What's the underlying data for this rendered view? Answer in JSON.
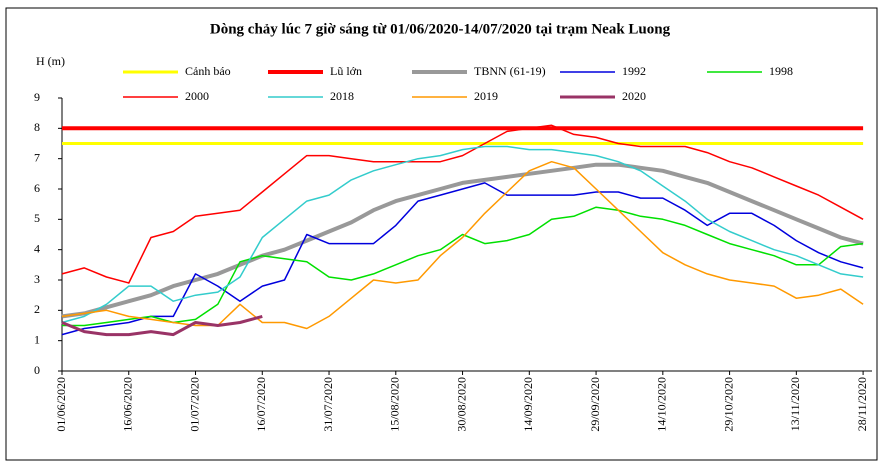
{
  "chart_data": {
    "type": "line",
    "title": "Dòng chảy lúc 7 giờ sáng từ 01/06/2020-14/07/2020 tại trạm Neak Luong",
    "y_label": "H (m)",
    "x": [
      "01/06/2020",
      "06/06/2020",
      "11/06/2020",
      "16/06/2020",
      "21/06/2020",
      "26/06/2020",
      "01/07/2020",
      "06/07/2020",
      "11/07/2020",
      "16/07/2020",
      "21/07/2020",
      "26/07/2020",
      "31/07/2020",
      "05/08/2020",
      "10/08/2020",
      "15/08/2020",
      "20/08/2020",
      "25/08/2020",
      "30/08/2020",
      "04/09/2020",
      "09/09/2020",
      "14/09/2020",
      "19/09/2020",
      "24/09/2020",
      "29/09/2020",
      "04/10/2020",
      "09/10/2020",
      "14/10/2020",
      "19/10/2020",
      "24/10/2020",
      "29/10/2020",
      "03/11/2020",
      "08/11/2020",
      "13/11/2020",
      "18/11/2020",
      "23/11/2020",
      "28/11/2020"
    ],
    "xlim": [
      "01/06/2020",
      "30/11/2020"
    ],
    "xticks": [
      "01/06/2020",
      "16/06/2020",
      "01/07/2020",
      "16/07/2020",
      "31/07/2020",
      "15/08/2020",
      "30/08/2020",
      "14/09/2020",
      "29/09/2020",
      "14/10/2020",
      "29/10/2020",
      "13/11/2020",
      "28/11/2020"
    ],
    "ylim": [
      0,
      9
    ],
    "yticks": [
      0,
      1,
      2,
      3,
      4,
      5,
      6,
      7,
      8,
      9
    ],
    "series": [
      {
        "name": "Cảnh báo",
        "color": "#ffff00",
        "width": 3,
        "values": [
          7.5,
          7.5,
          7.5,
          7.5,
          7.5,
          7.5,
          7.5,
          7.5,
          7.5,
          7.5,
          7.5,
          7.5,
          7.5,
          7.5,
          7.5,
          7.5,
          7.5,
          7.5,
          7.5,
          7.5,
          7.5,
          7.5,
          7.5,
          7.5,
          7.5,
          7.5,
          7.5,
          7.5,
          7.5,
          7.5,
          7.5,
          7.5,
          7.5,
          7.5,
          7.5,
          7.5,
          7.5
        ]
      },
      {
        "name": "Lũ lớn",
        "color": "#ff0000",
        "width": 4,
        "values": [
          8,
          8,
          8,
          8,
          8,
          8,
          8,
          8,
          8,
          8,
          8,
          8,
          8,
          8,
          8,
          8,
          8,
          8,
          8,
          8,
          8,
          8,
          8,
          8,
          8,
          8,
          8,
          8,
          8,
          8,
          8,
          8,
          8,
          8,
          8,
          8,
          8
        ]
      },
      {
        "name": "TBNN (61-19)",
        "color": "#999999",
        "width": 4,
        "values": [
          1.8,
          1.9,
          2.1,
          2.3,
          2.5,
          2.8,
          3.0,
          3.2,
          3.5,
          3.8,
          4.0,
          4.3,
          4.6,
          4.9,
          5.3,
          5.6,
          5.8,
          6.0,
          6.2,
          6.3,
          6.4,
          6.5,
          6.6,
          6.7,
          6.8,
          6.8,
          6.7,
          6.6,
          6.4,
          6.2,
          5.9,
          5.6,
          5.3,
          5.0,
          4.7,
          4.4,
          4.2
        ]
      },
      {
        "name": "1992",
        "color": "#0000dd",
        "width": 1.5,
        "values": [
          1.2,
          1.4,
          1.5,
          1.6,
          1.8,
          1.8,
          3.2,
          2.8,
          2.3,
          2.8,
          3.0,
          4.5,
          4.2,
          4.2,
          4.2,
          4.8,
          5.6,
          5.8,
          6.0,
          6.2,
          5.8,
          5.8,
          5.8,
          5.8,
          5.9,
          5.9,
          5.7,
          5.7,
          5.3,
          4.8,
          5.2,
          5.2,
          4.8,
          4.3,
          3.9,
          3.6,
          3.4
        ]
      },
      {
        "name": "1998",
        "color": "#00e000",
        "width": 1.5,
        "values": [
          1.5,
          1.5,
          1.6,
          1.7,
          1.8,
          1.6,
          1.7,
          2.2,
          3.6,
          3.8,
          3.7,
          3.6,
          3.1,
          3.0,
          3.2,
          3.5,
          3.8,
          4.0,
          4.5,
          4.2,
          4.3,
          4.5,
          5.0,
          5.1,
          5.4,
          5.3,
          5.1,
          5.0,
          4.8,
          4.5,
          4.2,
          4.0,
          3.8,
          3.5,
          3.5,
          4.1,
          4.2
        ]
      },
      {
        "name": "2000",
        "color": "#ff0000",
        "width": 1.5,
        "values": [
          3.2,
          3.4,
          3.1,
          2.9,
          4.4,
          4.6,
          5.1,
          5.2,
          5.3,
          5.9,
          6.5,
          7.1,
          7.1,
          7.0,
          6.9,
          6.9,
          6.9,
          6.9,
          7.1,
          7.5,
          7.9,
          8.0,
          8.1,
          7.8,
          7.7,
          7.5,
          7.4,
          7.4,
          7.4,
          7.2,
          6.9,
          6.7,
          6.4,
          6.1,
          5.8,
          5.4,
          5.0
        ]
      },
      {
        "name": "2018",
        "color": "#33cccc",
        "width": 1.5,
        "values": [
          1.6,
          1.8,
          2.2,
          2.8,
          2.8,
          2.3,
          2.5,
          2.6,
          3.1,
          4.4,
          5.0,
          5.6,
          5.8,
          6.3,
          6.6,
          6.8,
          7.0,
          7.1,
          7.3,
          7.4,
          7.4,
          7.3,
          7.3,
          7.2,
          7.1,
          6.9,
          6.6,
          6.1,
          5.6,
          5.0,
          4.6,
          4.3,
          4.0,
          3.8,
          3.5,
          3.2,
          3.1
        ]
      },
      {
        "name": "2019",
        "color": "#ff9900",
        "width": 1.5,
        "values": [
          1.8,
          1.9,
          2.0,
          1.8,
          1.7,
          1.6,
          1.5,
          1.5,
          2.2,
          1.6,
          1.6,
          1.4,
          1.8,
          2.4,
          3.0,
          2.9,
          3.0,
          3.8,
          4.4,
          5.2,
          5.9,
          6.6,
          6.9,
          6.7,
          6.0,
          5.3,
          4.6,
          3.9,
          3.5,
          3.2,
          3.0,
          2.9,
          2.8,
          2.4,
          2.5,
          2.7,
          2.2
        ]
      },
      {
        "name": "2020",
        "color": "#993366",
        "width": 3,
        "values": [
          1.6,
          1.3,
          1.2,
          1.2,
          1.3,
          1.2,
          1.6,
          1.5,
          1.6,
          1.8,
          null,
          null,
          null,
          null,
          null,
          null,
          null,
          null,
          null,
          null,
          null,
          null,
          null,
          null,
          null,
          null,
          null,
          null,
          null,
          null,
          null,
          null,
          null,
          null,
          null,
          null,
          null
        ]
      }
    ]
  }
}
